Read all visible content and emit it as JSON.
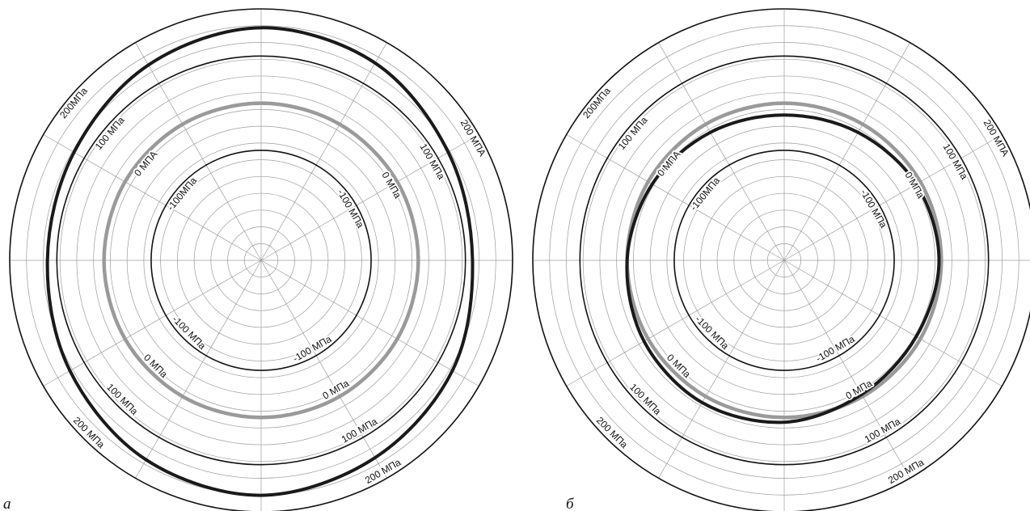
{
  "chart_data": [
    {
      "type": "polar",
      "panel_label": "а",
      "grid": true,
      "spoke_count": 12,
      "ring_count": 15,
      "r_range": [
        "-200",
        "200"
      ],
      "reference_rings": [
        {
          "value": -100,
          "labels": [
            "-100МПа",
            "-100 МПа",
            "-100 МПа",
            "-100 МПа"
          ]
        },
        {
          "value": 0,
          "labels": [
            "0 МПА",
            "0 МПа",
            "0 МПа",
            "0 МПа"
          ]
        },
        {
          "value": 100,
          "labels": [
            "100 МПа",
            "100 МПа",
            "100 МПа",
            "100 МПа"
          ]
        },
        {
          "value": 200,
          "labels": [
            "200МПа",
            "200 МПА",
            "200 МПа",
            "200 МПа"
          ]
        }
      ],
      "series": [
        {
          "color": "#9a9a9a",
          "angles_deg": [
            0,
            30,
            60,
            90,
            120,
            150,
            180,
            210,
            240,
            270,
            300,
            330
          ],
          "values": [
            0,
            0,
            0,
            0,
            0,
            0,
            0,
            0,
            0,
            0,
            0,
            0
          ]
        },
        {
          "color": "#1a1a1a",
          "angles_deg": [
            0,
            30,
            60,
            90,
            120,
            150,
            180,
            210,
            240,
            270,
            300,
            330
          ],
          "values": [
            115,
            135,
            150,
            165,
            155,
            135,
            120,
            125,
            145,
            160,
            150,
            125
          ]
        }
      ]
    },
    {
      "type": "polar",
      "panel_label": "б",
      "grid": true,
      "spoke_count": 12,
      "ring_count": 15,
      "r_range": [
        "-200",
        "200"
      ],
      "reference_rings": [
        {
          "value": -100,
          "labels": [
            "-100МПа",
            "-100 МПа",
            "-100 МПа",
            "-100 МПа"
          ]
        },
        {
          "value": 0,
          "labels": [
            "0 МПА",
            "0 МПа",
            "0 МПа",
            "0 МПа"
          ]
        },
        {
          "value": 100,
          "labels": [
            "100 МПа",
            "100 МПа",
            "100 МПа",
            "100 МПа"
          ]
        },
        {
          "value": 200,
          "labels": [
            "200МПа",
            "200 МПА",
            "200 МПа",
            "200 МПа"
          ]
        }
      ],
      "series": [
        {
          "color": "#9a9a9a",
          "angles_deg": [
            0,
            30,
            60,
            90,
            120,
            150,
            180,
            210,
            240,
            270,
            300,
            330
          ],
          "values": [
            0,
            0,
            0,
            0,
            0,
            0,
            0,
            0,
            0,
            0,
            0,
            0
          ]
        },
        {
          "color": "#1a1a1a",
          "angles_deg": [
            0,
            30,
            60,
            90,
            120,
            150,
            180,
            210,
            240,
            270,
            300,
            330
          ],
          "values": [
            -5,
            -10,
            -5,
            10,
            15,
            10,
            0,
            -10,
            -20,
            -25,
            -20,
            -10
          ]
        }
      ]
    }
  ]
}
